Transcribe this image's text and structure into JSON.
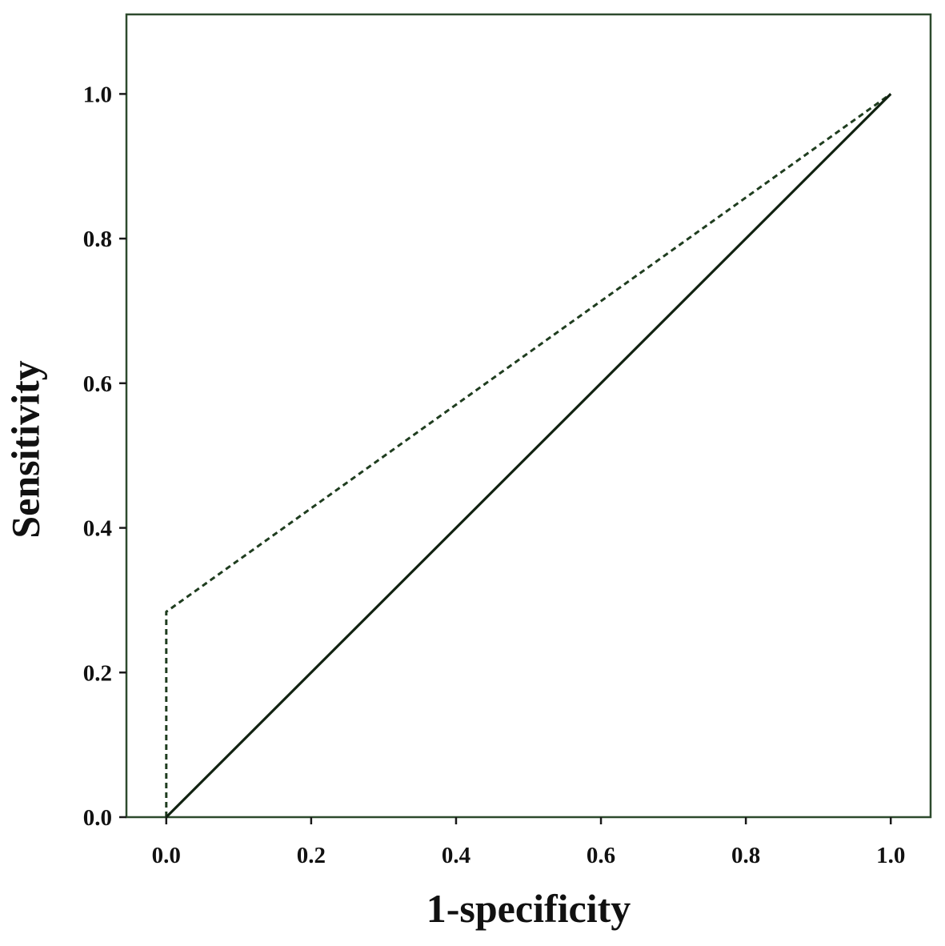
{
  "chart_data": {
    "type": "line",
    "title": "",
    "xlabel": "1-specificity",
    "ylabel": "Sensitivity",
    "xlim": [
      -0.055,
      1.055
    ],
    "ylim": [
      0,
      1.11
    ],
    "xticks": [
      0,
      0.2,
      0.4,
      0.6,
      0.8,
      1
    ],
    "yticks": [
      0,
      0.2,
      0.4,
      0.6,
      0.8,
      1
    ],
    "xtick_labels": [
      "0.0",
      "0.2",
      "0.4",
      "0.6",
      "0.8",
      "1.0"
    ],
    "ytick_labels": [
      "0.0",
      "0.2",
      "0.4",
      "0.6",
      "0.8",
      "1.0"
    ],
    "grid": false,
    "legend": "none",
    "series": [
      {
        "style": "dashed",
        "color": "#1f3d1f",
        "x": [
          0,
          0,
          1
        ],
        "y": [
          0,
          0.284,
          1
        ]
      },
      {
        "style": "solid",
        "color": "#112211",
        "x": [
          0,
          1
        ],
        "y": [
          0,
          1
        ]
      }
    ]
  },
  "colors": {
    "frame": "#2d4a2d",
    "axis": "#1a1a1a",
    "text": "#111111"
  }
}
